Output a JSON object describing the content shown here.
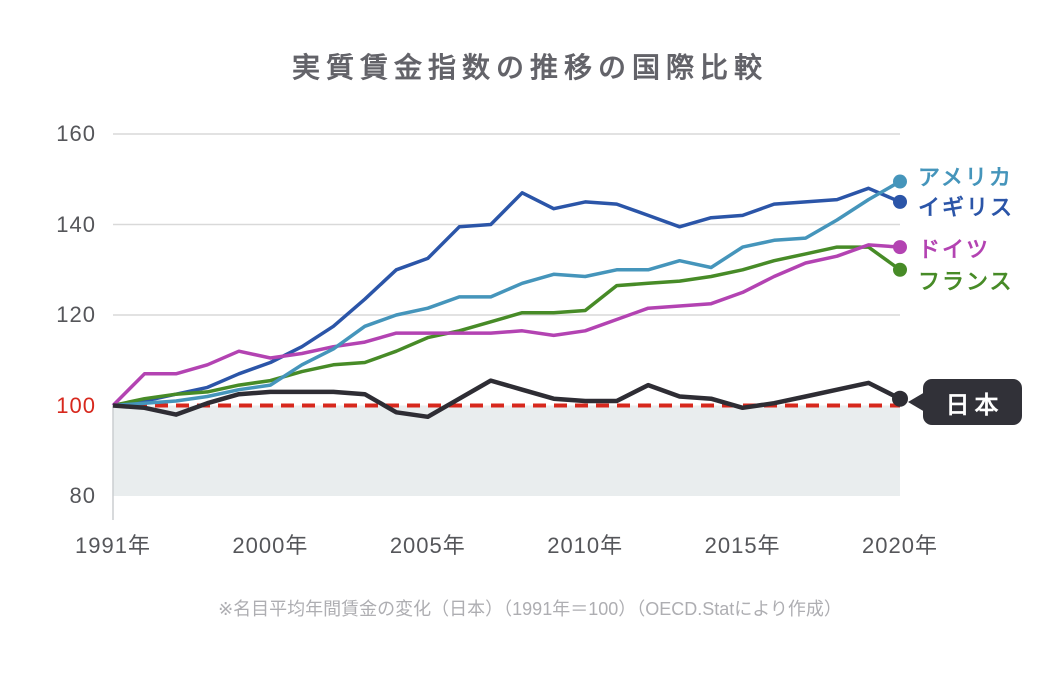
{
  "title": "実質賃金指数の推移の国際比較",
  "footnote": "※名目平均年間賃金の変化（日本）（1991年＝100）（OECD.Statにより作成）",
  "chart_data": {
    "type": "line",
    "title": "実質賃金指数の推移の国際比較",
    "x_years": [
      1991,
      1993,
      1995,
      1997,
      1999,
      2000,
      2001,
      2002,
      2003,
      2004,
      2005,
      2006,
      2007,
      2008,
      2009,
      2010,
      2011,
      2012,
      2013,
      2014,
      2015,
      2016,
      2017,
      2018,
      2019,
      2020
    ],
    "x_tick_labels": [
      "1991年",
      "2000年",
      "2005年",
      "2010年",
      "2015年",
      "2020年"
    ],
    "x_tick_years": [
      1991,
      2000,
      2005,
      2010,
      2015,
      2020
    ],
    "y_ticks": [
      {
        "label": "160",
        "value": 160,
        "gridline": true,
        "color": "#55565a"
      },
      {
        "label": "140",
        "value": 140,
        "gridline": true,
        "color": "#55565a"
      },
      {
        "label": "120",
        "value": 120,
        "gridline": true,
        "color": "#55565a"
      },
      {
        "label": "100",
        "value": 100,
        "gridline": false,
        "color": "#d7281d"
      },
      {
        "label": "80",
        "value": 80,
        "gridline": false,
        "color": "#55565a"
      }
    ],
    "ylim": [
      80,
      160
    ],
    "baseline": {
      "value": 100,
      "style": "dashed",
      "color": "#d7281d"
    },
    "shaded_band": {
      "from": 100,
      "to": 80,
      "color": "#e9edee"
    },
    "grid_color": "#d9d9d9",
    "legend_position": "right",
    "series": [
      {
        "label": "アメリカ",
        "color": "#4595bb",
        "end_dot": true,
        "values": [
          100,
          100.5,
          101,
          102,
          103.5,
          104.5,
          109,
          112.5,
          117.5,
          120,
          121.5,
          124,
          124,
          127,
          129,
          128.5,
          130,
          130,
          132,
          130.5,
          135,
          136.5,
          137,
          141,
          145.5,
          149.5
        ]
      },
      {
        "label": "イギリス",
        "color": "#2b55a8",
        "end_dot": true,
        "values": [
          100,
          101,
          102.5,
          104,
          107,
          109.5,
          113,
          117.5,
          123.5,
          130,
          132.5,
          139.5,
          140,
          147,
          143.5,
          145,
          144.5,
          142,
          139.5,
          141.5,
          142,
          144.5,
          145,
          145.5,
          148,
          145
        ]
      },
      {
        "label": "ドイツ",
        "color": "#b343b2",
        "end_dot": true,
        "values": [
          100,
          107,
          107,
          109,
          112,
          110.5,
          111.5,
          113,
          114,
          116,
          116,
          116,
          116,
          116.5,
          115.5,
          116.5,
          119,
          121.5,
          122,
          122.5,
          125,
          128.5,
          131.5,
          133,
          135.5,
          135
        ]
      },
      {
        "label": "フランス",
        "color": "#478b27",
        "end_dot": true,
        "values": [
          100,
          101.5,
          102.5,
          103,
          104.5,
          105.5,
          107.5,
          109,
          109.5,
          112,
          115,
          116.5,
          118.5,
          120.5,
          120.5,
          121,
          126.5,
          127,
          127.5,
          128.5,
          130,
          132,
          133.5,
          135,
          135,
          130
        ]
      },
      {
        "label": "日本",
        "color": "#2e2d34",
        "end_dot": true,
        "end_label_style": "badge",
        "values": [
          100,
          99.5,
          98,
          100.5,
          102.5,
          103,
          103,
          103,
          102.5,
          98.5,
          97.5,
          101.5,
          105.5,
          103.5,
          101.5,
          101,
          101,
          104.5,
          102,
          101.5,
          99.5,
          100.5,
          102,
          103.5,
          105,
          101.5
        ]
      }
    ]
  }
}
